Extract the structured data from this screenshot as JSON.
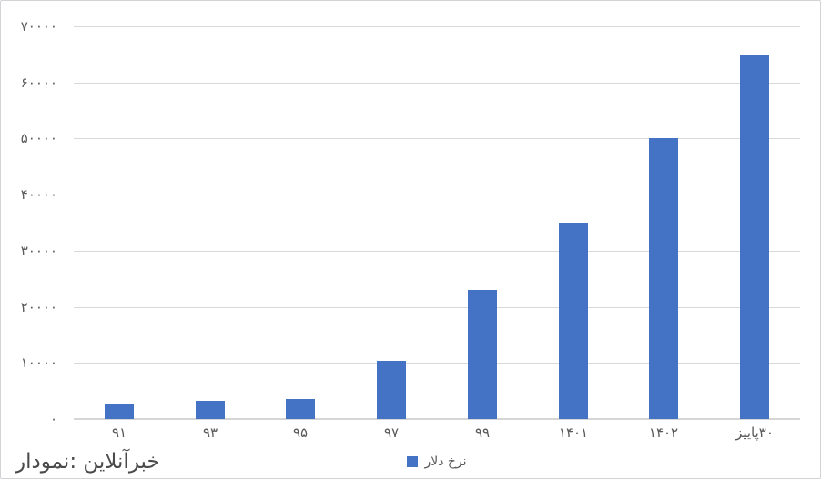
{
  "chart_data": {
    "type": "bar",
    "title": "",
    "xlabel": "",
    "ylabel": "",
    "categories": [
      "۹۱",
      "۹۳",
      "۹۵",
      "۹۷",
      "۹۹",
      "۱۴۰۱",
      "۱۴۰۲",
      "پاییز‎۳۰"
    ],
    "series": [
      {
        "name": "نرخ دلار",
        "values": [
          2600,
          3300,
          3600,
          10300,
          23000,
          35000,
          50000,
          65000
        ]
      }
    ],
    "ylim": [
      0,
      70000
    ],
    "ytick_step": 10000,
    "yticks": [
      {
        "value": 0,
        "label": "۰"
      },
      {
        "value": 10000,
        "label": "۱۰۰۰۰"
      },
      {
        "value": 20000,
        "label": "۲۰۰۰۰"
      },
      {
        "value": 30000,
        "label": "۳۰۰۰۰"
      },
      {
        "value": 40000,
        "label": "۴۰۰۰۰"
      },
      {
        "value": 50000,
        "label": "۵۰۰۰۰"
      },
      {
        "value": 60000,
        "label": "۶۰۰۰۰"
      },
      {
        "value": 70000,
        "label": "۷۰۰۰۰"
      }
    ],
    "grid": true,
    "legend_position": "bottom"
  },
  "legend": {
    "marker": "blue-square",
    "label": "نرخ دلار"
  },
  "footer": {
    "source_text": "نمودار:‎ خبرآنلاین"
  },
  "colors": {
    "bar": "#4472C4",
    "gridline": "#D9D9D9",
    "axis_line": "#D6D6D6",
    "tick_text": "#595959",
    "source_text": "#4A4A4A",
    "frame_border": "#D2D2D7",
    "background": "#FFFFFF"
  }
}
